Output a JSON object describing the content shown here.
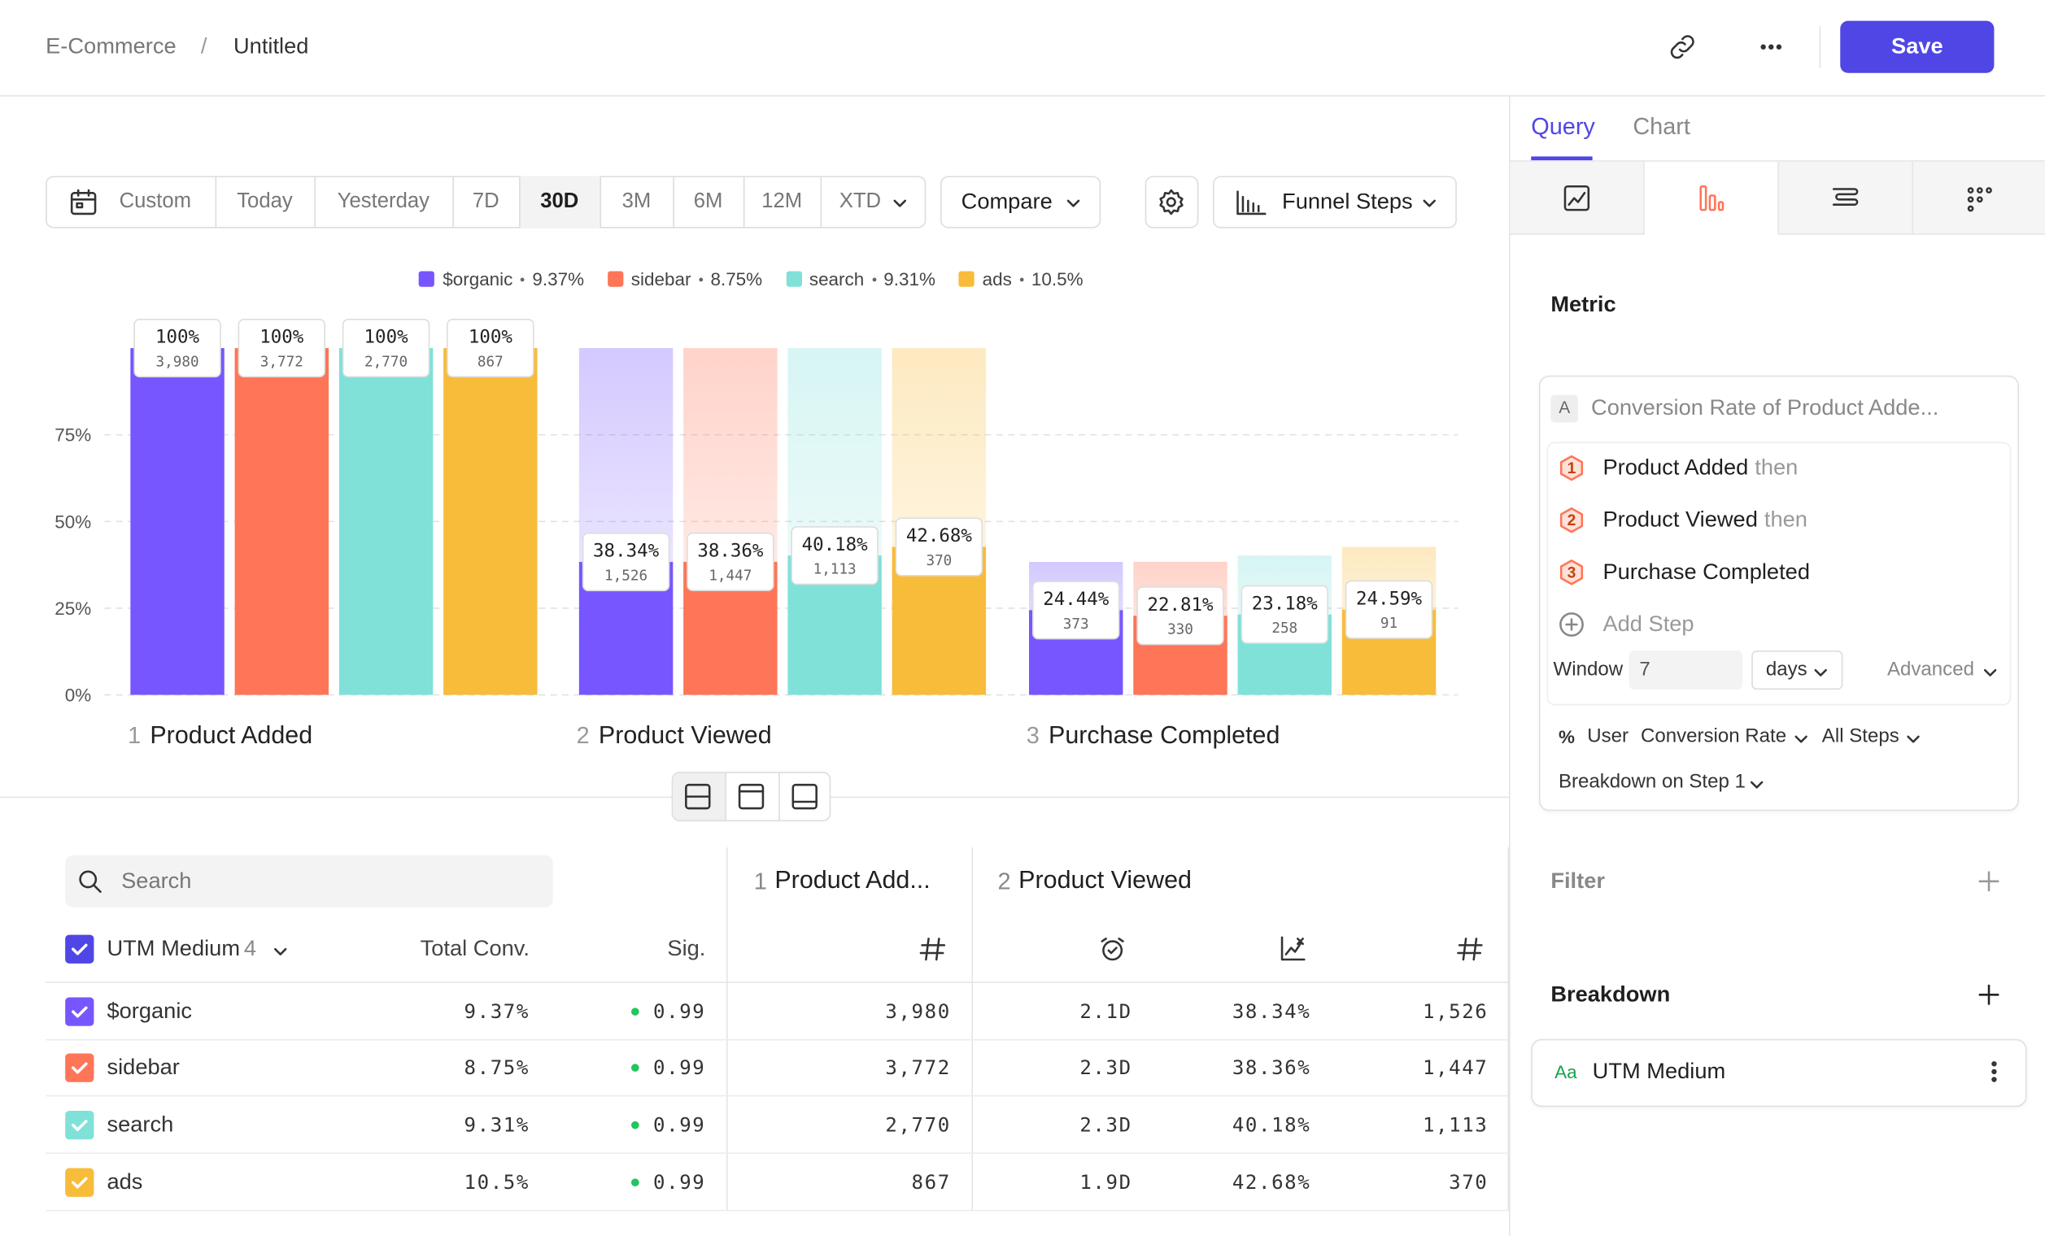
{
  "header": {
    "breadcrumb": "E-Commerce",
    "separator": "/",
    "title": "Untitled",
    "save": "Save"
  },
  "toolbar": {
    "ranges": [
      "Custom",
      "Today",
      "Yesterday",
      "7D",
      "30D",
      "3M",
      "6M",
      "12M",
      "XTD"
    ],
    "selected": "30D",
    "compare": "Compare",
    "chart_kind": "Funnel Steps"
  },
  "chart_data": {
    "type": "bar",
    "variant": "funnel",
    "categories": [
      "Product Added",
      "Product Viewed",
      "Purchase Completed"
    ],
    "step_numbers": [
      1,
      2,
      3
    ],
    "series": [
      {
        "name": "$organic",
        "overall": "9.37%",
        "color": "#7856ff",
        "values": [
          100,
          38.34,
          24.44
        ],
        "value_labels": [
          "100%",
          "38.34%",
          "24.44%"
        ],
        "count_labels": [
          "3,980",
          "1,526",
          "373"
        ]
      },
      {
        "name": "sidebar",
        "overall": "8.75%",
        "color": "#ff7557",
        "values": [
          100,
          38.36,
          22.81
        ],
        "value_labels": [
          "100%",
          "38.36%",
          "22.81%"
        ],
        "count_labels": [
          "3,772",
          "1,447",
          "330"
        ]
      },
      {
        "name": "search",
        "overall": "9.31%",
        "color": "#80e1d9",
        "values": [
          100,
          40.18,
          23.18
        ],
        "value_labels": [
          "100%",
          "40.18%",
          "23.18%"
        ],
        "count_labels": [
          "2,770",
          "1,113",
          "258"
        ]
      },
      {
        "name": "ads",
        "overall": "10.5%",
        "color": "#f8bc3b",
        "values": [
          100,
          42.68,
          24.59
        ],
        "value_labels": [
          "100%",
          "42.68%",
          "24.59%"
        ],
        "count_labels": [
          "867",
          "370",
          "91"
        ]
      }
    ],
    "ylim": [
      0,
      100
    ],
    "yticks": [
      {
        "value": 0,
        "label": "0%"
      },
      {
        "value": 25,
        "label": "25%"
      },
      {
        "value": 50,
        "label": "50%"
      },
      {
        "value": 75,
        "label": "75%"
      }
    ],
    "grid": true
  },
  "table": {
    "search": "Search",
    "group": "UTM Medium",
    "group_count": 4,
    "columns": [
      "Total Conv.",
      "Sig."
    ],
    "steps": [
      {
        "number": 1,
        "name": "Product Add..."
      },
      {
        "number": 2,
        "name": "Product Viewed"
      }
    ],
    "rows": [
      [
        "$organic",
        "9.37%",
        "0.99",
        "3,980",
        "2.1D",
        "38.34%",
        "1,526"
      ],
      [
        "sidebar",
        "8.75%",
        "0.99",
        "3,772",
        "2.3D",
        "38.36%",
        "1,447"
      ],
      [
        "search",
        "9.31%",
        "0.99",
        "2,770",
        "2.3D",
        "40.18%",
        "1,113"
      ],
      [
        "ads",
        "10.5%",
        "0.99",
        "867",
        "1.9D",
        "42.68%",
        "370"
      ]
    ]
  },
  "sidebar": {
    "tabs": [
      "Query",
      "Chart"
    ],
    "metric_title": "Metric",
    "metric": {
      "letter": "A",
      "name": "Conversion Rate of Product Adde...",
      "steps": [
        {
          "number": 1,
          "name": "Product Added",
          "suffix": "then"
        },
        {
          "number": 2,
          "name": "Product Viewed",
          "suffix": "then"
        },
        {
          "number": 3,
          "name": "Purchase Completed"
        }
      ],
      "add_step": "Add Step",
      "window_label": "Window",
      "window_value": 7,
      "window_unit": "days",
      "advanced": "Advanced",
      "percent": "%",
      "measure": "User",
      "calc": "Conversion Rate",
      "steps_scope": "All Steps",
      "breakdown_on": "Breakdown on Step 1"
    },
    "filter": "Filter",
    "breakdown": "Breakdown",
    "breakdown_type": "Aa",
    "breakdown_item": "UTM Medium"
  }
}
